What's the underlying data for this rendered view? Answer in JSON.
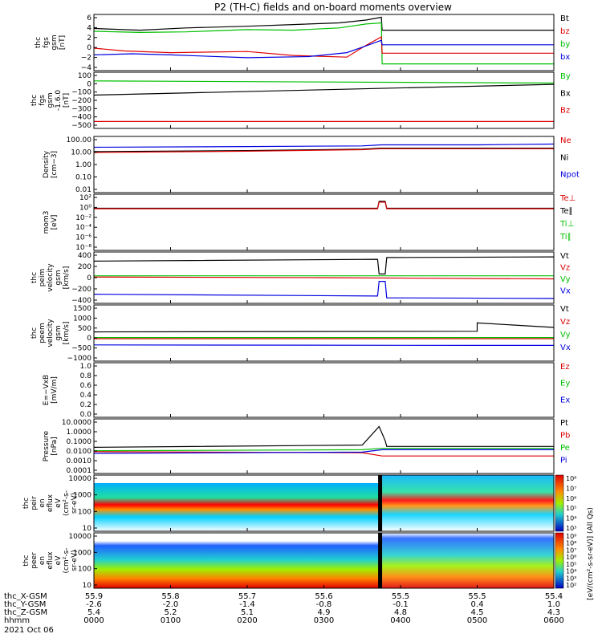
{
  "title": "P2 (TH-C) fields and on-board moments overview",
  "chart_data": {
    "type": "line",
    "title": "P2 (TH-C) fields and on-board moments overview",
    "x_ticks": [
      "0000",
      "0100",
      "0200",
      "0300",
      "0400",
      "0500",
      "0600"
    ],
    "x_range_hours": [
      0,
      6
    ],
    "orbit_rows": [
      {
        "label": "thc_X-GSM",
        "values": [
          "55.9",
          "55.8",
          "55.7",
          "55.6",
          "55.5",
          "55.5",
          "55.4"
        ]
      },
      {
        "label": "thc_Y-GSM",
        "values": [
          "-2.6",
          "-2.0",
          "-1.4",
          "-0.8",
          "-0.1",
          "0.4",
          "1.0"
        ]
      },
      {
        "label": "thc_Z-GSM",
        "values": [
          "5.4",
          "5.2",
          "5.1",
          "4.9",
          "4.8",
          "4.5",
          "4.3"
        ]
      },
      {
        "label": "hhmm",
        "values": []
      }
    ],
    "date_label": "2021 Oct 06",
    "panels": [
      {
        "ylabel": [
          "thc",
          "fgs",
          "gsm",
          "[nT]"
        ],
        "yticks": [
          "6",
          "4",
          "2",
          "0",
          "−2",
          "−4"
        ],
        "legend": [
          {
            "name": "Bt",
            "color": "#000000"
          },
          {
            "name": "bz",
            "color": "#e00000"
          },
          {
            "name": "by",
            "color": "#00c000"
          },
          {
            "name": "bx",
            "color": "#0000e0"
          }
        ],
        "series": [
          {
            "color": "#000000",
            "points": [
              [
                0,
                3.5
              ],
              [
                0.6,
                3.2
              ],
              [
                1.2,
                3.6
              ],
              [
                2.0,
                3.9
              ],
              [
                2.6,
                4.2
              ],
              [
                3.2,
                4.5
              ],
              [
                3.55,
                5
              ],
              [
                3.75,
                5.5
              ],
              [
                3.76,
                3.2
              ],
              [
                6,
                3.2
              ]
            ]
          },
          {
            "color": "#00c000",
            "points": [
              [
                0,
                3
              ],
              [
                0.6,
                2.8
              ],
              [
                1.2,
                2.9
              ],
              [
                2.0,
                3.3
              ],
              [
                2.6,
                3.2
              ],
              [
                3.2,
                3.6
              ],
              [
                3.55,
                4.3
              ],
              [
                3.75,
                4.5
              ],
              [
                3.76,
                -2.8
              ],
              [
                6,
                -2.8
              ]
            ]
          },
          {
            "color": "#e00000",
            "points": [
              [
                0,
                0
              ],
              [
                0.4,
                -0.5
              ],
              [
                1.0,
                -0.8
              ],
              [
                2.0,
                -0.6
              ],
              [
                2.6,
                -1.3
              ],
              [
                3.3,
                -1.6
              ],
              [
                3.55,
                0.5
              ],
              [
                3.75,
                2
              ],
              [
                3.76,
                -0.9
              ],
              [
                6,
                -0.9
              ]
            ]
          },
          {
            "color": "#0000e0",
            "points": [
              [
                0,
                -1.2
              ],
              [
                0.5,
                -1.0
              ],
              [
                1.0,
                -1.2
              ],
              [
                2.0,
                -1.7
              ],
              [
                2.8,
                -1.5
              ],
              [
                3.3,
                -0.8
              ],
              [
                3.55,
                0.4
              ],
              [
                3.75,
                1.4
              ],
              [
                3.76,
                0.6
              ],
              [
                6,
                0.6
              ]
            ]
          }
        ]
      },
      {
        "ylabel": [
          "thc",
          "fgs",
          "gsm",
          "-1.6.0",
          "[nT]"
        ],
        "yticks": [
          "100",
          "0",
          "−100",
          "−200",
          "−300",
          "−400",
          "−500"
        ],
        "legend": [
          {
            "name": "By",
            "color": "#00c000"
          },
          {
            "name": "Bx",
            "color": "#000000"
          },
          {
            "name": "Bz",
            "color": "#e00000"
          }
        ],
        "series": [
          {
            "color": "#00c000",
            "points": [
              [
                0,
                0
              ],
              [
                6,
                -25
              ]
            ]
          },
          {
            "color": "#000000",
            "points": [
              [
                0,
                -165
              ],
              [
                6,
                -40
              ]
            ]
          },
          {
            "color": "#e00000",
            "points": [
              [
                0,
                -470
              ],
              [
                6,
                -470
              ]
            ]
          }
        ]
      },
      {
        "ylabel": [
          "Density",
          "[cm−3]"
        ],
        "yticks": [
          "100.00",
          "10.00",
          "1.00",
          "0.10",
          "0.01"
        ],
        "legend": [
          {
            "name": "Ne",
            "color": "#e00000"
          },
          {
            "name": "Ni",
            "color": "#000000"
          },
          {
            "name": "Npot",
            "color": "#0000e0"
          }
        ],
        "series": [
          {
            "color": "#0000e0",
            "points": [
              [
                0,
                30
              ],
              [
                2,
                35
              ],
              [
                3.5,
                40
              ],
              [
                3.75,
                50
              ],
              [
                5,
                50
              ],
              [
                6,
                60
              ]
            ]
          },
          {
            "color": "#000000",
            "points": [
              [
                0,
                12
              ],
              [
                2,
                15
              ],
              [
                3.5,
                20
              ],
              [
                3.75,
                25
              ],
              [
                5,
                25
              ],
              [
                6,
                25
              ]
            ]
          },
          {
            "color": "#e00000",
            "points": [
              [
                0,
                10
              ],
              [
                2,
                13
              ],
              [
                3.5,
                18
              ],
              [
                3.75,
                22
              ],
              [
                5,
                22
              ],
              [
                6,
                22
              ]
            ]
          }
        ]
      },
      {
        "ylabel": [
          "mom3",
          "[eV]"
        ],
        "yticks": [
          "10²",
          "10⁰",
          "10⁻²",
          "10⁻⁴",
          "10⁻⁶",
          "10⁻⁸"
        ],
        "legend": [
          {
            "name": "Te⊥",
            "color": "#e00000"
          },
          {
            "name": "Te∥",
            "color": "#000000"
          },
          {
            "name": "Ti⊥",
            "color": "#00c000"
          },
          {
            "name": "Ti∥",
            "color": "#00c000"
          }
        ],
        "series": [
          {
            "color": "#000000",
            "points": [
              [
                0,
                1
              ],
              [
                3.7,
                1
              ],
              [
                3.72,
                30
              ],
              [
                3.8,
                30
              ],
              [
                3.82,
                1
              ],
              [
                6,
                1
              ]
            ]
          },
          {
            "color": "#e00000",
            "points": [
              [
                0,
                0.8
              ],
              [
                3.7,
                0.8
              ],
              [
                3.72,
                20
              ],
              [
                3.8,
                20
              ],
              [
                3.82,
                0.8
              ],
              [
                6,
                0.8
              ]
            ]
          }
        ]
      },
      {
        "ylabel": [
          "thc",
          "peim",
          "velocity",
          "gsm",
          "[km/s]"
        ],
        "yticks": [
          "400",
          "200",
          "0",
          "−200",
          "−400"
        ],
        "legend": [
          {
            "name": "Vt",
            "color": "#000000"
          },
          {
            "name": "Vz",
            "color": "#e00000"
          },
          {
            "name": "Vy",
            "color": "#00c000"
          },
          {
            "name": "Vx",
            "color": "#0000e0"
          }
        ],
        "series": [
          {
            "color": "#000000",
            "points": [
              [
                0,
                270
              ],
              [
                3.7,
                300
              ],
              [
                3.72,
                60
              ],
              [
                3.8,
                60
              ],
              [
                3.82,
                330
              ],
              [
                6,
                340
              ]
            ]
          },
          {
            "color": "#00c000",
            "points": [
              [
                0,
                30
              ],
              [
                6,
                30
              ]
            ]
          },
          {
            "color": "#e00000",
            "points": [
              [
                0,
                10
              ],
              [
                3,
                0
              ],
              [
                6,
                -20
              ]
            ]
          },
          {
            "color": "#0000e0",
            "points": [
              [
                0,
                -270
              ],
              [
                3.7,
                -300
              ],
              [
                3.72,
                -60
              ],
              [
                3.8,
                -60
              ],
              [
                3.82,
                -330
              ],
              [
                6,
                -340
              ]
            ]
          }
        ]
      },
      {
        "ylabel": [
          "thc",
          "peem",
          "velocity",
          "gsm",
          "[km/s]"
        ],
        "yticks": [
          "1500",
          "1000",
          "500",
          "0",
          "−500",
          "−1000"
        ],
        "legend": [
          {
            "name": "Vt",
            "color": "#000000"
          },
          {
            "name": "Vz",
            "color": "#e00000"
          },
          {
            "name": "Vy",
            "color": "#00c000"
          },
          {
            "name": "Vx",
            "color": "#0000e0"
          }
        ],
        "series": [
          {
            "color": "#000000",
            "points": [
              [
                0,
                300
              ],
              [
                5,
                330
              ],
              [
                5,
                700
              ],
              [
                6,
                500
              ]
            ]
          },
          {
            "color": "#00c000",
            "points": [
              [
                0,
                50
              ],
              [
                6,
                50
              ]
            ]
          },
          {
            "color": "#e00000",
            "points": [
              [
                0,
                0
              ],
              [
                6,
                0
              ]
            ]
          },
          {
            "color": "#0000e0",
            "points": [
              [
                0,
                -280
              ],
              [
                5,
                -300
              ],
              [
                6,
                -300
              ]
            ]
          }
        ]
      },
      {
        "ylabel": [
          "E=−VxB",
          "[mV/m]"
        ],
        "yticks": [
          "1.0",
          "0.8",
          "0.6",
          "0.4",
          "0.2",
          "0.0"
        ],
        "legend": [
          {
            "name": "Ez",
            "color": "#e00000"
          },
          {
            "name": "Ey",
            "color": "#00c000"
          },
          {
            "name": "Ex",
            "color": "#0000e0"
          }
        ],
        "series": []
      },
      {
        "ylabel": [
          "Pressure",
          "[nPa]"
        ],
        "yticks": [
          "10.0000",
          "1.0000",
          "0.1000",
          "0.0100",
          "0.0010",
          "0.0001"
        ],
        "legend": [
          {
            "name": "Pt",
            "color": "#000000"
          },
          {
            "name": "Pb",
            "color": "#e00000"
          },
          {
            "name": "Pe",
            "color": "#00c000"
          },
          {
            "name": "Pi",
            "color": "#0000e0"
          }
        ],
        "series": [
          {
            "color": "#000000",
            "points": [
              [
                0,
                0.025
              ],
              [
                3.5,
                0.04
              ],
              [
                3.72,
                2
              ],
              [
                3.8,
                0.1
              ],
              [
                3.82,
                0.03
              ],
              [
                6,
                0.03
              ]
            ]
          },
          {
            "color": "#00c000",
            "points": [
              [
                0,
                0.012
              ],
              [
                3.5,
                0.015
              ],
              [
                3.75,
                0.02
              ],
              [
                6,
                0.02
              ]
            ]
          },
          {
            "color": "#e00000",
            "points": [
              [
                0,
                0.01
              ],
              [
                3.5,
                0.008
              ],
              [
                3.76,
                0.004
              ],
              [
                6,
                0.004
              ]
            ]
          },
          {
            "color": "#0000e0",
            "points": [
              [
                0,
                0.007
              ],
              [
                3.5,
                0.009
              ],
              [
                3.76,
                0.015
              ],
              [
                6,
                0.015
              ]
            ]
          }
        ]
      },
      {
        "ylabel": [
          "thc",
          "peir",
          "en",
          "eflux",
          "eV",
          "(cm²-s-",
          "sr-eV)"
        ],
        "yticks": [
          "10000",
          "1000",
          "100",
          "10"
        ],
        "colorbar_ticks": [
          "10⁸",
          "10⁷",
          "10⁶",
          "10⁵",
          "10⁴",
          "10³"
        ]
      },
      {
        "ylabel": [
          "thc",
          "peer",
          "en",
          "eflux",
          "eV",
          "(cm²-s-",
          "sr-eV)"
        ],
        "yticks": [
          "10000",
          "1000",
          "100",
          "10"
        ],
        "colorbar_ticks": [
          "10⁹",
          "10⁸",
          "10⁷",
          "10⁶",
          "10⁵",
          "10⁴",
          "10³",
          "10²"
        ]
      }
    ],
    "colorbar_label": "[eV/(cm²-s-sr-eV)] (All Qs)"
  }
}
